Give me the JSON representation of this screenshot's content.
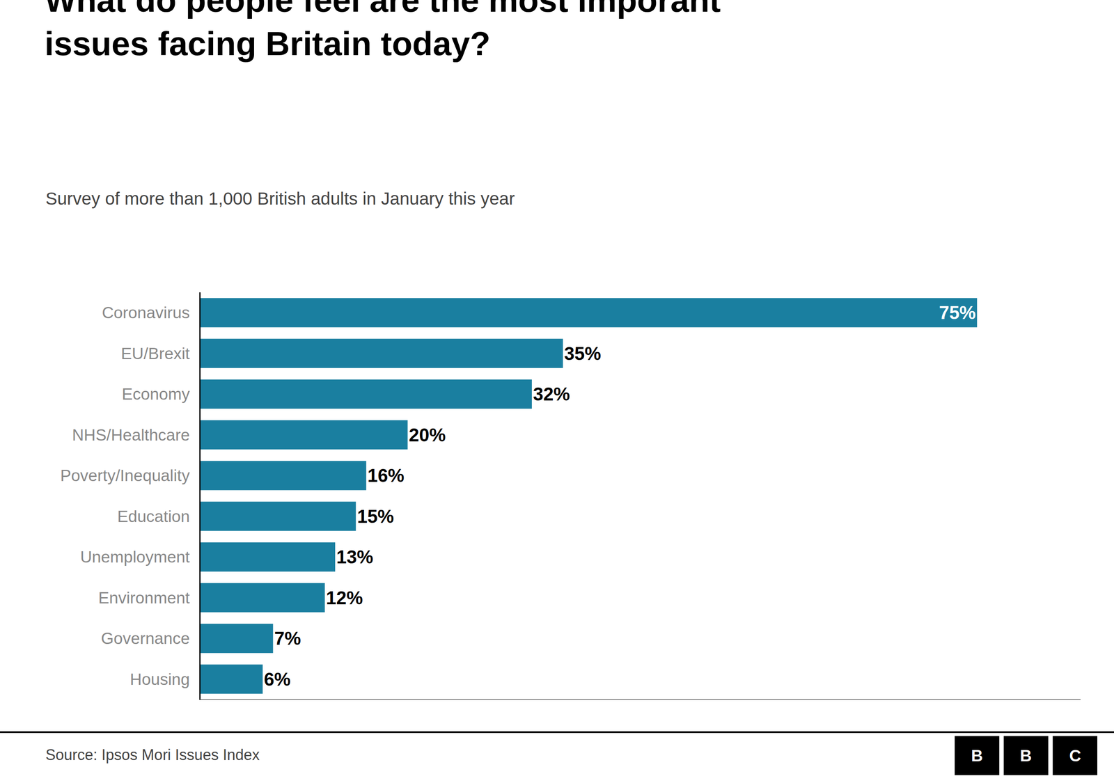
{
  "chart_data": {
    "type": "bar",
    "orientation": "horizontal",
    "title": "What do people feel are the most imporant\nissues facing Britain today?",
    "subtitle": "Survey of more than 1,000 British adults in January this year",
    "annotations": [
      "Source: Ipsos Mori Issues Index",
      "BBC"
    ],
    "categories": [
      "Coronavirus",
      "EU/Brexit",
      "Economy",
      "NHS/Healthcare",
      "Poverty/Inequality",
      "Education",
      "Unemployment",
      "Environment",
      "Governance",
      "Housing"
    ],
    "values": [
      75,
      35,
      32,
      20,
      16,
      15,
      13,
      12,
      7,
      6
    ],
    "value_labels": [
      "75%",
      "35%",
      "32%",
      "20%",
      "16%",
      "15%",
      "13%",
      "12%",
      "7%",
      "6%"
    ],
    "data_labels": true,
    "color": "#1a7fa0",
    "xlim": [
      0,
      85
    ],
    "tick_labels": "y",
    "grid": false
  }
}
